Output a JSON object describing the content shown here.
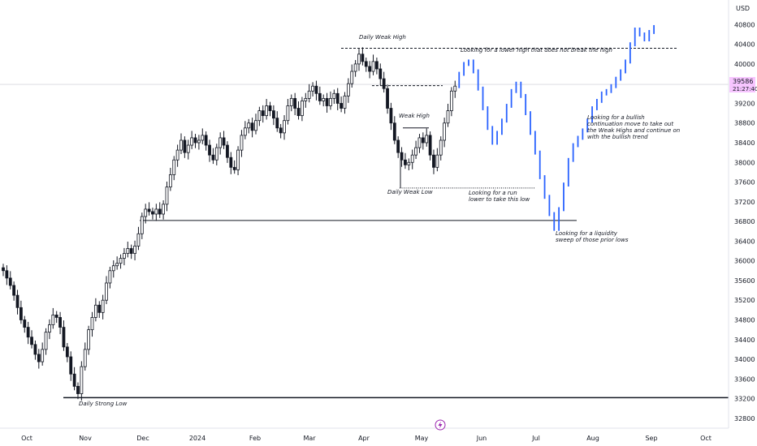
{
  "chart_data": {
    "type": "candlestick",
    "currency": "USD",
    "y_axis_side": "right",
    "ylim": [
      32600,
      41300
    ],
    "y_ticks": [
      32800,
      33200,
      33600,
      34000,
      34400,
      34800,
      35200,
      35600,
      36000,
      36400,
      36800,
      37200,
      37600,
      38000,
      38400,
      38800,
      39200,
      39600,
      40000,
      40400,
      40800
    ],
    "x_ticks": [
      "Oct",
      "Nov",
      "Dec",
      "2024",
      "Feb",
      "Mar",
      "Apr",
      "May",
      "Jun",
      "Jul",
      "Aug",
      "Sep",
      "Oct"
    ],
    "last_price": "39586",
    "countdown": "21:27:40",
    "colors": {
      "up": "#ffffff",
      "down": "#131722",
      "projection": "#2962ff",
      "last_price_badge": "#f7c5ff"
    },
    "candles_close": [
      35800,
      35650,
      35500,
      35300,
      35050,
      34800,
      34650,
      34450,
      34300,
      34100,
      33950,
      34200,
      34550,
      34700,
      34900,
      34850,
      34650,
      34250,
      34050,
      33700,
      33450,
      33300,
      33850,
      34200,
      34600,
      34850,
      35100,
      34950,
      35200,
      35550,
      35800,
      35900,
      35950,
      36050,
      36150,
      36250,
      36150,
      36300,
      36550,
      36900,
      37050,
      37000,
      36950,
      37050,
      36950,
      37150,
      37500,
      37750,
      38050,
      38250,
      38450,
      38200,
      38350,
      38500,
      38400,
      38450,
      38550,
      38350,
      38150,
      38050,
      38300,
      38500,
      38350,
      38100,
      37900,
      37850,
      38250,
      38550,
      38700,
      38800,
      38650,
      38850,
      39050,
      38950,
      39150,
      39050,
      38900,
      38700,
      38600,
      38850,
      39150,
      39300,
      39100,
      38950,
      39250,
      39300,
      39450,
      39550,
      39400,
      39250,
      39300,
      39150,
      39300,
      39400,
      39200,
      39100,
      39350,
      39600,
      39850,
      40000,
      40200,
      40050,
      39950,
      39850,
      40050,
      39900,
      39700,
      39500,
      39100,
      38800,
      38450,
      38200,
      38050,
      37950,
      38000,
      38150,
      38300,
      38500,
      38400,
      38550,
      38150,
      37900,
      38150,
      38450,
      38800,
      39050,
      39450,
      39550
    ],
    "projection_close": [
      39800,
      40000,
      40050,
      39850,
      39500,
      39100,
      38700,
      38400,
      38600,
      38850,
      39150,
      39450,
      39600,
      39350,
      39000,
      38600,
      38200,
      37700,
      37300,
      36950,
      36650,
      37050,
      37550,
      38050,
      38350,
      38500,
      38650,
      38850,
      39100,
      39250,
      39400,
      39450,
      39550,
      39700,
      39850,
      40050,
      40400,
      40700,
      40600,
      40500,
      40650,
      40750
    ],
    "levels": [
      {
        "label": "Daily Weak High",
        "value": 40320,
        "style": "dashed"
      },
      {
        "label": "",
        "value": 39560,
        "style": "dashed"
      },
      {
        "label": "Weak High",
        "value": 38700,
        "style": "solid"
      },
      {
        "label": "Daily Weak Low",
        "value": 37480,
        "style": "dotted"
      },
      {
        "label": "",
        "value": 36820,
        "style": "solid"
      },
      {
        "label": "Daily Strong Low",
        "value": 33220,
        "style": "solid"
      }
    ],
    "annotations": [
      {
        "text": "Daily Weak High"
      },
      {
        "text": "Looking for a lower high that does not break the high"
      },
      {
        "text": "Weak High"
      },
      {
        "text": "Daily Weak Low"
      },
      {
        "text": "Looking for a run"
      },
      {
        "text": "lower to take this low"
      },
      {
        "text": "Looking for a liquidity"
      },
      {
        "text": "sweep of those prior lows"
      },
      {
        "text": "Looking for a bullish"
      },
      {
        "text": "continuation move to take out"
      },
      {
        "text": "the Weak Highs and continue on"
      },
      {
        "text": "with the bullish trend"
      },
      {
        "text": "Daily Strong Low"
      }
    ]
  }
}
